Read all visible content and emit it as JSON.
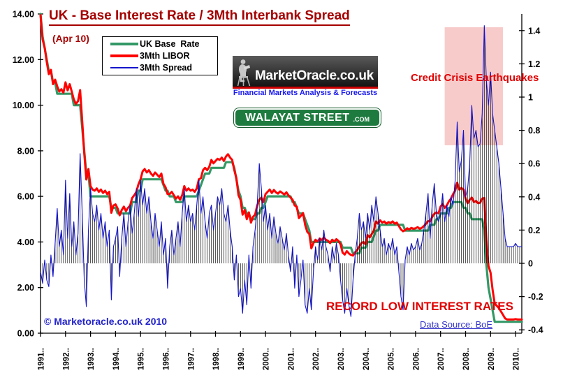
{
  "header": {
    "title": "UK - Base Interest Rate / 3Mth Interbank Spread",
    "date_note": "(Apr 10)"
  },
  "legend": {
    "items": [
      {
        "label": "UK Base  Rate",
        "color": "#339966",
        "thickness": 4
      },
      {
        "label": "3Mth LIBOR",
        "color": "#ff0000",
        "thickness": 4
      },
      {
        "label": "3Mth Spread",
        "color": "#1414cc",
        "thickness": 1.5
      }
    ]
  },
  "logos": {
    "marketoracle": {
      "name": "MarketOracle.co.uk",
      "tagline": "Financial Markets Analysis & Forecasts",
      "bar_color": "#2a2a2a",
      "accent_color": "#cc0000",
      "tagline_color": "#1a1aef"
    },
    "walayat": {
      "text": "WALAYAT STREET",
      "suffix": ".com",
      "sign_color": "#1e7b3f"
    }
  },
  "annotations": {
    "credit_crisis": {
      "text": "Credit Crisis Earthquakes",
      "color": "#e00000"
    },
    "record_low": {
      "text": "RECORD LOW INTEREST RATES",
      "color": "#e00000"
    },
    "copyright": {
      "text": "© Marketoracle.co.uk 2010",
      "color": "#2222cc"
    },
    "data_source": {
      "text": "Data Source: BoE",
      "color": "#3333cc"
    }
  },
  "chart_data": {
    "type": "line",
    "title": "UK - Base Interest Rate / 3Mth Interbank Spread",
    "x_axis": {
      "start": "1991-01",
      "end": "2010-04",
      "frequency": "monthly",
      "points": 232,
      "tick_labels": [
        "1991..",
        "1992..",
        "1993..",
        "1994..",
        "1995..",
        "1996..",
        "1997..",
        "1998..",
        "1999..",
        "2000..",
        "2001..",
        "2002..",
        "2003..",
        "2004..",
        "2005..",
        "2006..",
        "2007..",
        "2008..",
        "2009..",
        "2010.."
      ]
    },
    "y_left": {
      "min": 0,
      "max": 14,
      "tick_step": 2,
      "tick_labels": [
        "14.00",
        "12.00",
        "10.00",
        "8.00",
        "6.00",
        "4.00",
        "2.00",
        "0.00"
      ],
      "applies_to": [
        "UK Base Rate",
        "3Mth LIBOR"
      ]
    },
    "y_right": {
      "min": -0.4,
      "max": 1.4,
      "tick_step": 0.2,
      "tick_labels": [
        "1.4",
        "1.2",
        "1",
        "0.8",
        "0.6",
        "0.4",
        "0.2",
        "0",
        "-0.2",
        "-0.4"
      ],
      "applies_to": [
        "3Mth Spread"
      ]
    },
    "grid": false,
    "legend_position": "top-left",
    "highlight_region": {
      "label": "Credit Crisis Earthquakes",
      "x_from": "2007-03",
      "x_to": "2009-07",
      "right_axis_from": 0.71,
      "right_axis_to": 1.42,
      "color": "#f8cbcb"
    },
    "series": [
      {
        "name": "UK Base Rate",
        "color": "#339966",
        "axis": "left",
        "style": "thick-step-line",
        "values": [
          14,
          13,
          12.5,
          12,
          11.5,
          11.5,
          11,
          11,
          10.5,
          10.5,
          10.5,
          10.5,
          10.5,
          10.5,
          10.5,
          10.5,
          10,
          10,
          10,
          10,
          9,
          8,
          7,
          7,
          6,
          6,
          6,
          6,
          6,
          6,
          6,
          6,
          6,
          6,
          5.5,
          5.5,
          5.5,
          5.25,
          5.25,
          5.25,
          5.25,
          5.25,
          5.25,
          5.25,
          5.75,
          5.75,
          5.75,
          6.25,
          6.25,
          6.75,
          6.75,
          6.75,
          6.75,
          6.75,
          6.75,
          6.75,
          6.75,
          6.75,
          6.75,
          6.5,
          6.25,
          6.25,
          6,
          6,
          6,
          5.75,
          5.75,
          5.75,
          5.75,
          6,
          6,
          6,
          6,
          6,
          6,
          6,
          6.25,
          6.5,
          6.75,
          7,
          7,
          7,
          7.25,
          7.25,
          7.25,
          7.25,
          7.25,
          7.25,
          7.25,
          7.5,
          7.5,
          7.5,
          7.5,
          7.25,
          6.75,
          6.25,
          6,
          5.5,
          5.5,
          5.25,
          5.25,
          5,
          5,
          5,
          5.25,
          5.25,
          5.5,
          5.5,
          5.75,
          6,
          6,
          6,
          6,
          6,
          6,
          6,
          6,
          6,
          6,
          6,
          6,
          5.75,
          5.75,
          5.5,
          5.25,
          5.25,
          5.25,
          5,
          4.75,
          4.5,
          4,
          4,
          4,
          4,
          4,
          4,
          4,
          4,
          4,
          4,
          4,
          4,
          4,
          4,
          4,
          3.75,
          3.75,
          3.75,
          3.75,
          3.75,
          3.5,
          3.5,
          3.5,
          3.5,
          3.75,
          3.75,
          3.75,
          4,
          4,
          4,
          4.25,
          4.5,
          4.5,
          4.75,
          4.75,
          4.75,
          4.75,
          4.75,
          4.75,
          4.75,
          4.75,
          4.75,
          4.75,
          4.75,
          4.75,
          4.5,
          4.5,
          4.5,
          4.5,
          4.5,
          4.5,
          4.5,
          4.5,
          4.5,
          4.5,
          4.5,
          4.5,
          4.75,
          4.75,
          4.75,
          5,
          5,
          5.25,
          5.25,
          5.25,
          5.25,
          5.5,
          5.5,
          5.75,
          5.75,
          5.75,
          5.75,
          5.75,
          5.5,
          5.5,
          5.25,
          5.25,
          5,
          5,
          5,
          5,
          5,
          5,
          4.5,
          3,
          2,
          1.5,
          1,
          0.5,
          0.5,
          0.5,
          0.5,
          0.5,
          0.5,
          0.5,
          0.5,
          0.5,
          0.5,
          0.5,
          0.5,
          0.5,
          0.5
        ]
      },
      {
        "name": "3Mth Spread",
        "color": "#1414cc",
        "axis": "right",
        "style": "thin-line-with-black-drop-lines-to-zero",
        "values": [
          -0.05,
          -0.12,
          0.02,
          -0.1,
          -0.14,
          0.05,
          -0.08,
          0.12,
          0.33,
          0.1,
          0.2,
          0.05,
          0.5,
          0.15,
          0.42,
          0.1,
          0.25,
          0.05,
          0.18,
          0.66,
          0.3,
          -0.1,
          -0.26,
          0.2,
          0.45,
          0.3,
          0.25,
          0.35,
          0.2,
          0.3,
          0.15,
          0.25,
          0.1,
          0.2,
          -0.22,
          0.1,
          0.15,
          0.22,
          -0.08,
          0.15,
          0.3,
          0.1,
          0.25,
          0.35,
          0.18,
          0.3,
          0.45,
          0.28,
          0.5,
          0.35,
          0.45,
          0.3,
          0.4,
          0.25,
          0.15,
          0.3,
          0.2,
          0.1,
          0.25,
          0.05,
          0.15,
          -0.15,
          0.1,
          0.2,
          0.05,
          0.15,
          0.25,
          0.1,
          0.3,
          0.45,
          0.25,
          0.35,
          0.25,
          0.3,
          0.2,
          0.35,
          0.5,
          0.3,
          0.4,
          0.25,
          0.15,
          0.3,
          0.35,
          0.2,
          0.3,
          0.4,
          0.35,
          0.45,
          0.3,
          0.25,
          0.35,
          0.2,
          0.1,
          -0.1,
          0.05,
          -0.2,
          -0.15,
          -0.3,
          -0.1,
          -0.25,
          0.05,
          -0.15,
          0.1,
          0.2,
          0.35,
          0.6,
          0.45,
          0.25,
          0.35,
          0.2,
          0.3,
          0.15,
          0.28,
          0.18,
          0.12,
          0.22,
          0.15,
          0.08,
          0.18,
          0.05,
          -0.05,
          0.1,
          -0.15,
          0.05,
          -0.2,
          -0.1,
          0.02,
          -0.25,
          -0.3,
          -0.15,
          -0.28,
          -0.05,
          0.1,
          0.02,
          0.15,
          0.08,
          0.2,
          0.1,
          0.05,
          -0.05,
          0.1,
          0.02,
          0.12,
          0.05,
          -0.1,
          -0.22,
          -0.3,
          -0.15,
          -0.25,
          -0.32,
          -0.1,
          0.05,
          0.15,
          0.3,
          0.2,
          0.25,
          0.15,
          0.3,
          0.2,
          0.35,
          0.25,
          0.4,
          0.3,
          0.2,
          0.1,
          0.15,
          0.05,
          0.12,
          0.08,
          0.15,
          0.05,
          0.1,
          -0.05,
          -0.2,
          -0.28,
          0.02,
          0.1,
          0.05,
          0.12,
          0.08,
          0.1,
          0.15,
          0.08,
          0.12,
          0.2,
          0.3,
          0.42,
          0.15,
          0.35,
          0.48,
          0.3,
          0.25,
          0.3,
          0.42,
          0.25,
          0.35,
          0.28,
          0.4,
          0.35,
          0.5,
          0.85,
          0.55,
          0.62,
          0.8,
          0.4,
          0.45,
          0.6,
          0.95,
          0.75,
          0.8,
          0.7,
          0.72,
          0.9,
          1.43,
          1.1,
          0.95,
          1.15,
          0.9,
          0.8,
          0.7,
          0.6,
          0.45,
          0.3,
          0.15,
          0.1,
          0.1,
          0.1,
          0.1,
          0.12,
          0.1,
          0.1,
          0.1
        ]
      },
      {
        "name": "3Mth LIBOR",
        "color": "#ff0000",
        "axis": "left",
        "style": "thick-line",
        "values_derived": "UK Base Rate + 3Mth Spread (spread = 3Mth LIBOR minus Base Rate)"
      }
    ]
  }
}
